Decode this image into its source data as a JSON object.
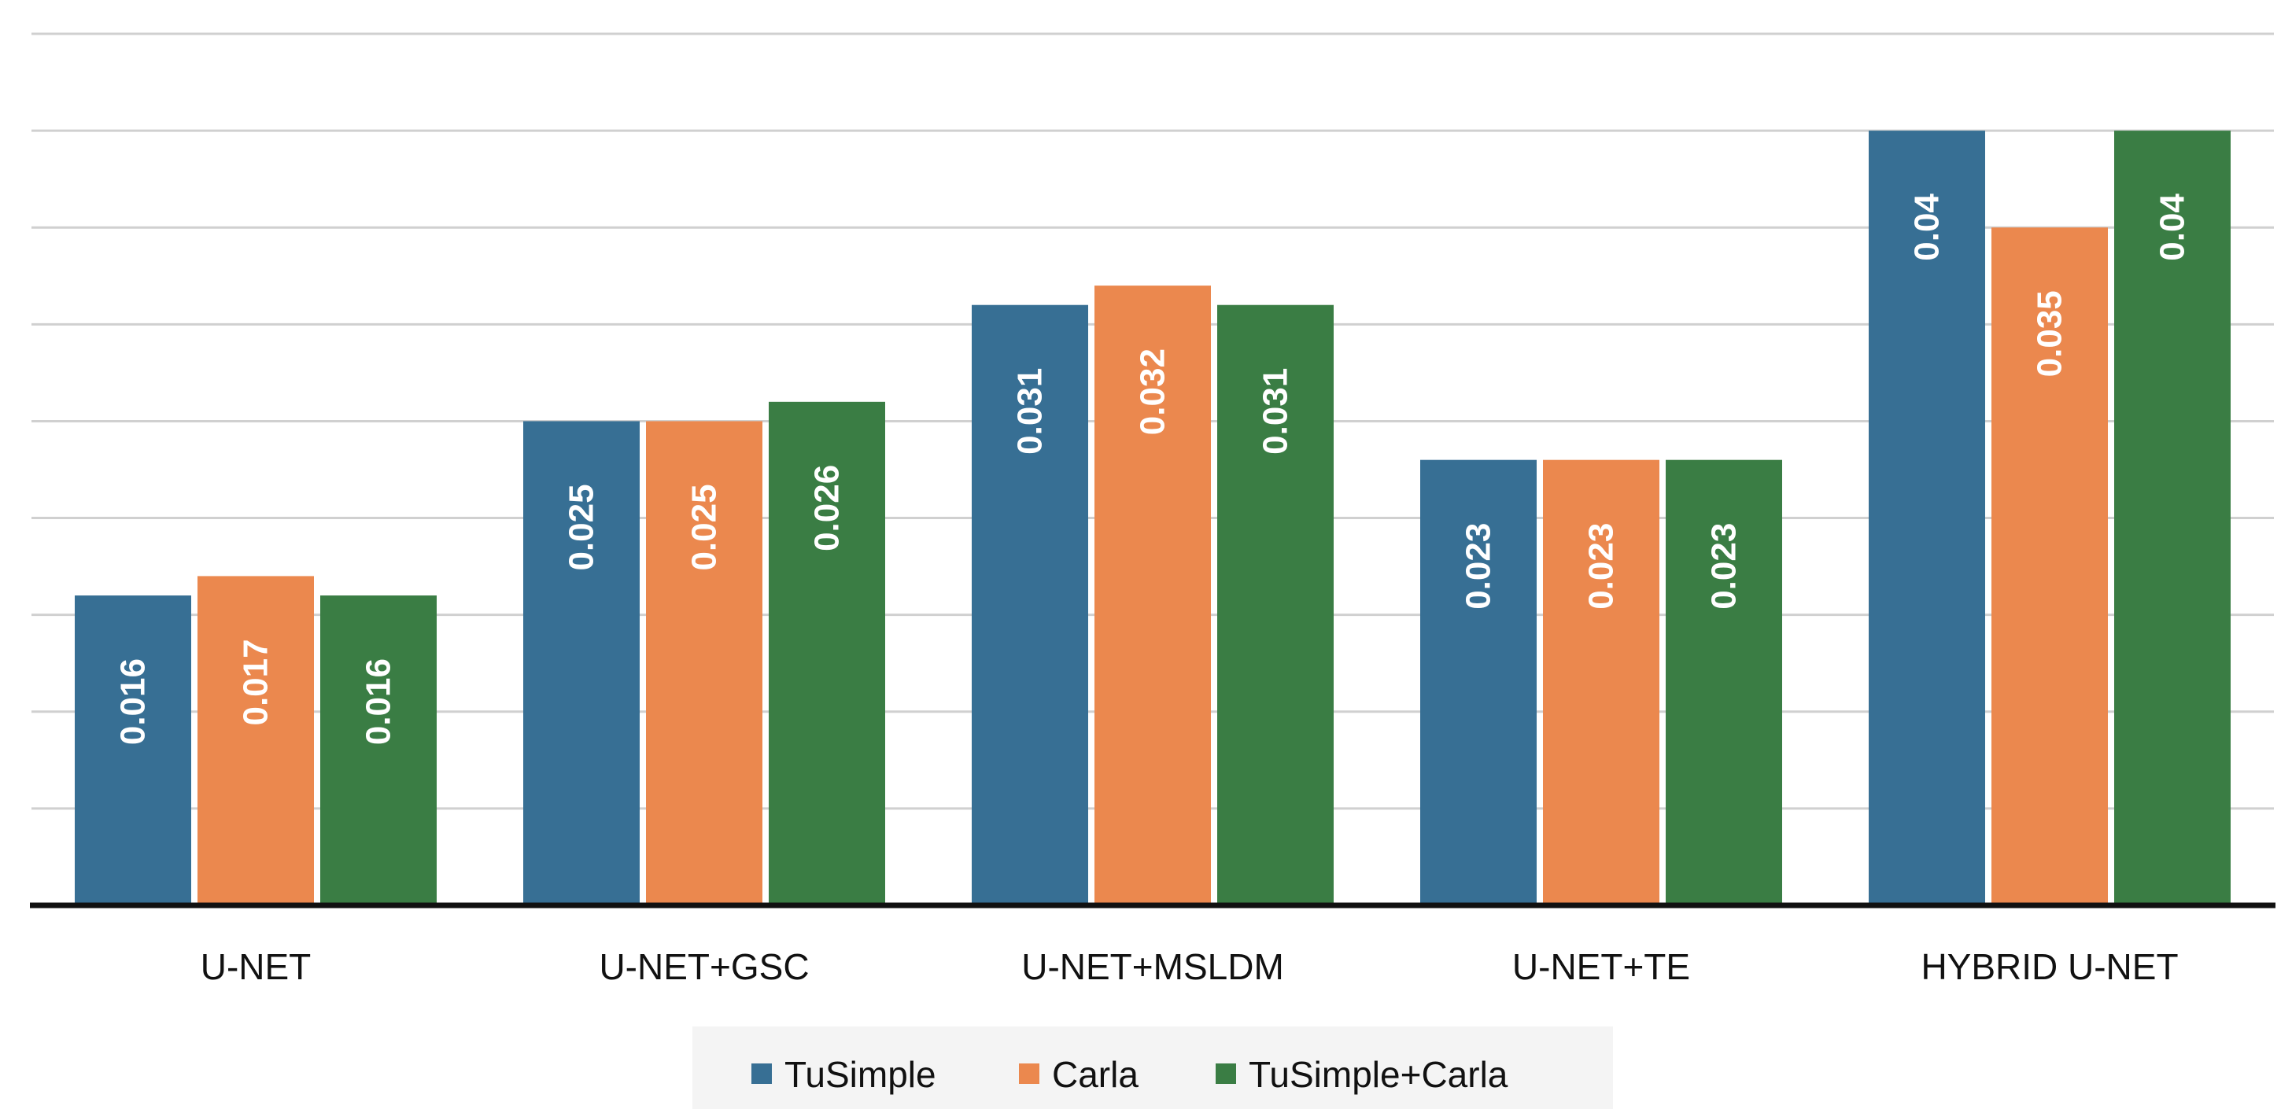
{
  "chart_data": {
    "type": "bar",
    "categories": [
      "U-NET",
      "U-NET+GSC",
      "U-NET+MSLDM",
      "U-NET+TE",
      "HYBRID U-NET"
    ],
    "series": [
      {
        "name": "TuSimple",
        "color": "#376f94",
        "values": [
          0.016,
          0.025,
          0.031,
          0.023,
          0.04
        ]
      },
      {
        "name": "Carla",
        "color": "#eb884e",
        "values": [
          0.017,
          0.025,
          0.032,
          0.023,
          0.035
        ]
      },
      {
        "name": "TuSimple+Carla",
        "color": "#3a7d44",
        "values": [
          0.016,
          0.026,
          0.031,
          0.023,
          0.04
        ]
      }
    ],
    "data_labels": [
      [
        "0.016",
        "0.025",
        "0.031",
        "0.023",
        "0.04"
      ],
      [
        "0.017",
        "0.025",
        "0.032",
        "0.023",
        "0.035"
      ],
      [
        "0.016",
        "0.026",
        "0.031",
        "0.023",
        "0.04"
      ]
    ],
    "ylim": [
      0,
      0.045
    ],
    "grid": true,
    "legend_position": "bottom"
  }
}
